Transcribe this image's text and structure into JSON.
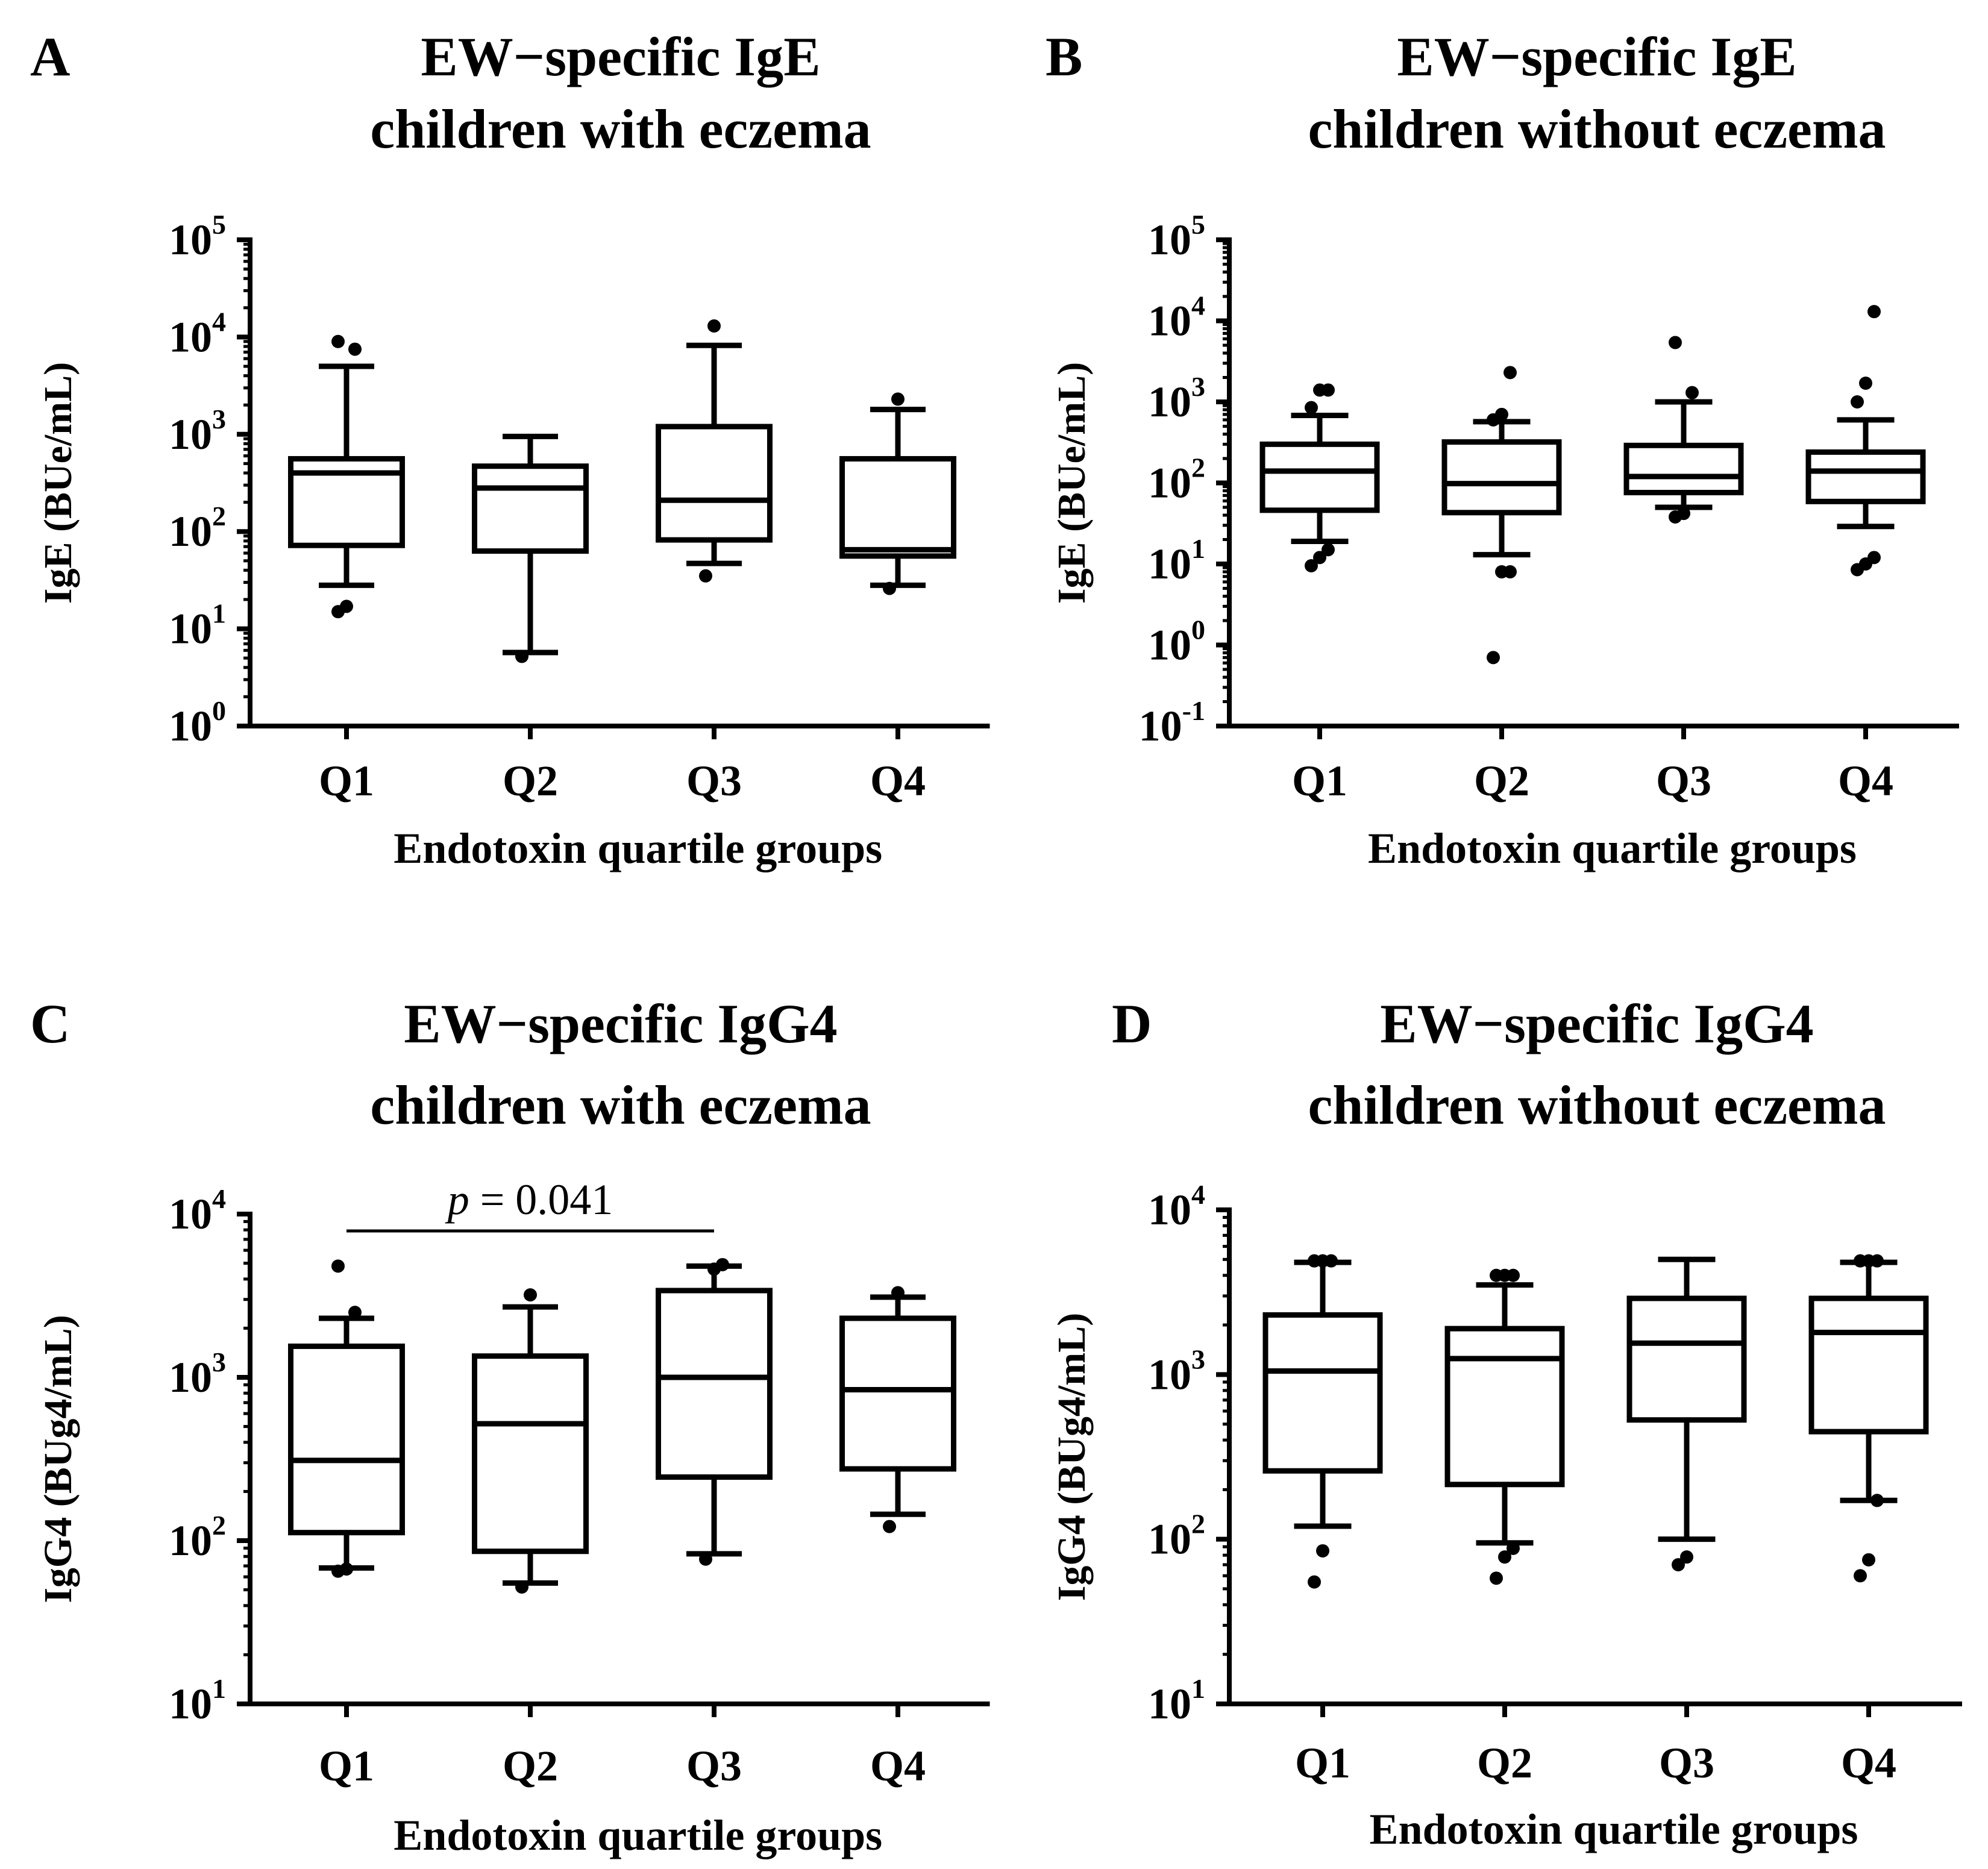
{
  "figure": {
    "colors": {
      "ink": "#000000",
      "background": "#ffffff"
    }
  },
  "chart_data": [
    {
      "panel": "A",
      "type": "box",
      "title_lines": [
        "EW−specific IgE",
        "children with eczema"
      ],
      "xlabel": "Endotoxin quartile groups",
      "ylabel": "IgE (BUe/mL)",
      "yscale": "log",
      "ylim_exp": [
        0,
        5
      ],
      "ytick_labels": [
        {
          "base": "10",
          "exp": "0"
        },
        {
          "base": "10",
          "exp": "1"
        },
        {
          "base": "10",
          "exp": "2"
        },
        {
          "base": "10",
          "exp": "3"
        },
        {
          "base": "10",
          "exp": "4"
        },
        {
          "base": "10",
          "exp": "5"
        }
      ],
      "categories": [
        "Q1",
        "Q2",
        "Q3",
        "Q4"
      ],
      "boxes": [
        {
          "whisker_low": 28,
          "q1": 72,
          "median": 400,
          "q3": 560,
          "whisker_high": 5000,
          "outliers": [
            15,
            17,
            7500,
            9000
          ]
        },
        {
          "whisker_low": 5.7,
          "q1": 63,
          "median": 280,
          "q3": 470,
          "whisker_high": 950,
          "outliers": [
            5.2
          ]
        },
        {
          "whisker_low": 47,
          "q1": 82,
          "median": 210,
          "q3": 1200,
          "whisker_high": 8200,
          "outliers": [
            35,
            13000
          ]
        },
        {
          "whisker_low": 28,
          "q1": 56,
          "median": 65,
          "q3": 560,
          "whisker_high": 1800,
          "outliers": [
            26,
            2300
          ]
        }
      ],
      "annotations": []
    },
    {
      "panel": "B",
      "type": "box",
      "title_lines": [
        "EW−specific IgE",
        "children without eczema"
      ],
      "xlabel": "Endotoxin quartile groups",
      "ylabel": "IgE (BUe/mL)",
      "yscale": "log",
      "ylim_exp": [
        -1,
        5
      ],
      "ytick_labels": [
        {
          "base": "10",
          "exp": "-1"
        },
        {
          "base": "10",
          "exp": "0"
        },
        {
          "base": "10",
          "exp": "1"
        },
        {
          "base": "10",
          "exp": "2"
        },
        {
          "base": "10",
          "exp": "3"
        },
        {
          "base": "10",
          "exp": "4"
        },
        {
          "base": "10",
          "exp": "5"
        }
      ],
      "categories": [
        "Q1",
        "Q2",
        "Q3",
        "Q4"
      ],
      "boxes": [
        {
          "whisker_low": 19,
          "q1": 46,
          "median": 140,
          "q3": 300,
          "whisker_high": 680,
          "outliers": [
            9.5,
            12,
            15,
            850,
            1400,
            1400
          ]
        },
        {
          "whisker_low": 13,
          "q1": 43,
          "median": 98,
          "q3": 320,
          "whisker_high": 570,
          "outliers": [
            0.7,
            8,
            8,
            600,
            700,
            2300
          ]
        },
        {
          "whisker_low": 50,
          "q1": 76,
          "median": 120,
          "q3": 290,
          "whisker_high": 1000,
          "outliers": [
            38,
            42,
            1300,
            5400
          ]
        },
        {
          "whisker_low": 29,
          "q1": 59,
          "median": 140,
          "q3": 240,
          "whisker_high": 600,
          "outliers": [
            8.5,
            10,
            12,
            1000,
            1700,
            13000
          ]
        }
      ],
      "annotations": []
    },
    {
      "panel": "C",
      "type": "box",
      "title_lines": [
        "EW−specific IgG4",
        "children with eczema"
      ],
      "xlabel": "Endotoxin quartile groups",
      "ylabel": "IgG4 (BUg4/mL)",
      "yscale": "log",
      "ylim_exp": [
        1,
        4
      ],
      "ytick_labels": [
        {
          "base": "10",
          "exp": "1"
        },
        {
          "base": "10",
          "exp": "2"
        },
        {
          "base": "10",
          "exp": "3"
        },
        {
          "base": "10",
          "exp": "4"
        }
      ],
      "categories": [
        "Q1",
        "Q2",
        "Q3",
        "Q4"
      ],
      "boxes": [
        {
          "whisker_low": 68,
          "q1": 112,
          "median": 310,
          "q3": 1550,
          "whisker_high": 2300,
          "outliers": [
            65,
            67,
            2500,
            4800
          ]
        },
        {
          "whisker_low": 55,
          "q1": 86,
          "median": 520,
          "q3": 1350,
          "whisker_high": 2700,
          "outliers": [
            52,
            3200
          ]
        },
        {
          "whisker_low": 83,
          "q1": 245,
          "median": 1000,
          "q3": 3400,
          "whisker_high": 4800,
          "outliers": [
            77,
            4600,
            4900
          ]
        },
        {
          "whisker_low": 145,
          "q1": 275,
          "median": 840,
          "q3": 2300,
          "whisker_high": 3100,
          "outliers": [
            122,
            3300
          ]
        }
      ],
      "annotations": [
        {
          "text_italic": "p",
          "text": " = 0.041",
          "from_category": "Q1",
          "to_category": "Q3"
        }
      ]
    },
    {
      "panel": "D",
      "type": "box",
      "title_lines": [
        "EW−specific IgG4",
        "children without eczema"
      ],
      "xlabel": "Endotoxin quartile groups",
      "ylabel": "IgG4 (BUg4/mL)",
      "yscale": "log",
      "ylim_exp": [
        1,
        4
      ],
      "ytick_labels": [
        {
          "base": "10",
          "exp": "1"
        },
        {
          "base": "10",
          "exp": "2"
        },
        {
          "base": "10",
          "exp": "3"
        },
        {
          "base": "10",
          "exp": "4"
        }
      ],
      "categories": [
        "Q1",
        "Q2",
        "Q3",
        "Q4"
      ],
      "boxes": [
        {
          "whisker_low": 120,
          "q1": 260,
          "median": 1050,
          "q3": 2300,
          "whisker_high": 4800,
          "outliers": [
            55,
            85,
            4900,
            4900,
            4900
          ]
        },
        {
          "whisker_low": 95,
          "q1": 215,
          "median": 1250,
          "q3": 1900,
          "whisker_high": 3500,
          "outliers": [
            58,
            78,
            88,
            4000,
            4000,
            4000
          ]
        },
        {
          "whisker_low": 100,
          "q1": 530,
          "median": 1550,
          "q3": 2900,
          "whisker_high": 5000,
          "outliers": [
            70,
            78
          ]
        },
        {
          "whisker_low": 172,
          "q1": 450,
          "median": 1800,
          "q3": 2900,
          "whisker_high": 4800,
          "outliers": [
            60,
            75,
            172,
            4900,
            4900,
            4900
          ]
        }
      ],
      "annotations": []
    }
  ]
}
